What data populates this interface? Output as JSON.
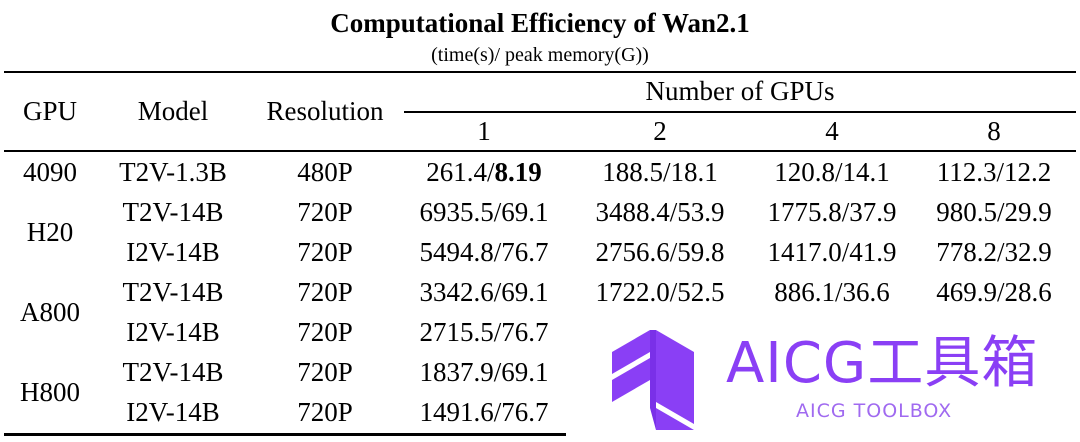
{
  "title": "Computational Efficiency of Wan2.1",
  "subtitle": "(time(s)/ peak memory(G))",
  "headers": {
    "gpu": "GPU",
    "model": "Model",
    "resolution": "Resolution",
    "num_gpus": "Number of GPUs",
    "gpu_counts": [
      "1",
      "2",
      "4",
      "8"
    ]
  },
  "groups": [
    {
      "gpu": "4090",
      "rows": [
        {
          "model": "T2V-1.3B",
          "resolution": "480P",
          "c1_time": "261.4/",
          "c1_mem": "8.19",
          "c2": "188.5/18.1",
          "c4": "120.8/14.1",
          "c8": "112.3/12.2"
        }
      ]
    },
    {
      "gpu": "H20",
      "rows": [
        {
          "model": "T2V-14B",
          "resolution": "720P",
          "c1": "6935.5/69.1",
          "c2": "3488.4/53.9",
          "c4": "1775.8/37.9",
          "c8": "980.5/29.9"
        },
        {
          "model": "I2V-14B",
          "resolution": "720P",
          "c1": "5494.8/76.7",
          "c2": "2756.6/59.8",
          "c4": "1417.0/41.9",
          "c8": "778.2/32.9"
        }
      ]
    },
    {
      "gpu": "A800",
      "rows": [
        {
          "model": "T2V-14B",
          "resolution": "720P",
          "c1": "3342.6/69.1",
          "c2": "1722.0/52.5",
          "c4": "886.1/36.6",
          "c8": "469.9/28.6"
        },
        {
          "model": "I2V-14B",
          "resolution": "720P",
          "c1": "2715.5/76.7"
        }
      ]
    },
    {
      "gpu": "H800",
      "rows": [
        {
          "model": "T2V-14B",
          "resolution": "720P",
          "c1": "1837.9/69.1"
        },
        {
          "model": "I2V-14B",
          "resolution": "720P",
          "c1": "1491.6/76.7"
        }
      ]
    }
  ],
  "watermark": {
    "label": "AICG工具箱",
    "sub": "AICG TOOLBOX",
    "color": "#8a3ff5",
    "icon": "aicg-logo-icon"
  }
}
